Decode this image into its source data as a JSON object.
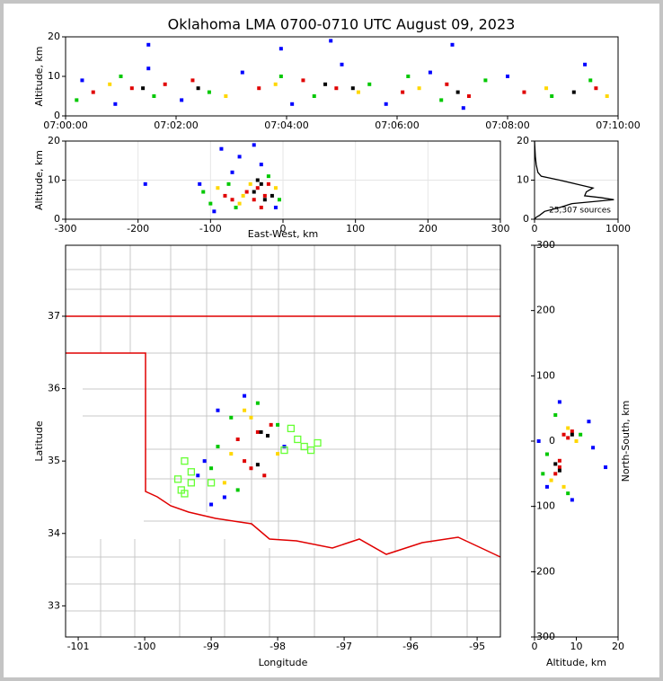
{
  "chart_data": [
    {
      "type": "scatter",
      "title": "Oklahoma LMA 0700-0710 UTC August 09, 2023",
      "y_label": "Altitude, km",
      "xlim": [
        0,
        10
      ],
      "xticks": [
        {
          "value": 0,
          "label": "07:00:00"
        },
        {
          "value": 2,
          "label": "07:02:00"
        },
        {
          "value": 4,
          "label": "07:04:00"
        },
        {
          "value": 6,
          "label": "07:06:00"
        },
        {
          "value": 8,
          "label": "07:08:00"
        },
        {
          "value": 10,
          "label": "07:10:00"
        }
      ],
      "ylim": [
        0,
        20
      ],
      "yticks": [
        0,
        10,
        20
      ],
      "grid": false,
      "series": [
        {
          "color": "#0000ff",
          "x": [
            0.3,
            0.9,
            1.5,
            2.1,
            3.2,
            4.1,
            5.0,
            5.8,
            6.6,
            7.2,
            8.0,
            9.4,
            1.5,
            3.9,
            4.8,
            7.0
          ],
          "values": [
            9,
            3,
            12,
            4,
            11,
            3,
            13,
            3,
            11,
            2,
            10,
            13,
            18,
            17,
            19,
            18
          ]
        },
        {
          "color": "#00c800",
          "x": [
            0.2,
            1.0,
            1.6,
            2.6,
            3.9,
            4.5,
            5.5,
            6.2,
            6.8,
            7.6,
            8.8,
            9.5
          ],
          "values": [
            4,
            10,
            5,
            6,
            10,
            5,
            8,
            10,
            4,
            9,
            5,
            9
          ]
        },
        {
          "color": "#ffd700",
          "x": [
            0.8,
            2.9,
            3.8,
            5.3,
            6.4,
            8.7,
            9.8
          ],
          "values": [
            8,
            5,
            8,
            6,
            7,
            7,
            5
          ]
        },
        {
          "color": "#e00000",
          "x": [
            0.5,
            1.2,
            1.8,
            2.3,
            3.5,
            4.3,
            4.9,
            6.1,
            6.9,
            7.3,
            8.3,
            9.6
          ],
          "values": [
            6,
            7,
            8,
            9,
            7,
            9,
            7,
            6,
            8,
            5,
            6,
            7
          ]
        },
        {
          "color": "#000000",
          "x": [
            1.4,
            4.7,
            7.1,
            9.2,
            2.4,
            5.2
          ],
          "values": [
            7,
            8,
            6,
            6,
            7,
            7
          ]
        }
      ]
    },
    {
      "type": "scatter",
      "x_label": "East-West, km",
      "y_label": "Altitude, km",
      "xlim": [
        -300,
        300
      ],
      "xticks": [
        -300,
        -200,
        -100,
        0,
        100,
        200,
        300
      ],
      "ylim": [
        0,
        20
      ],
      "yticks": [
        0,
        10,
        20
      ],
      "grid": true,
      "series": [
        {
          "color": "#0000ff",
          "x": [
            -115,
            -95,
            -70,
            -30,
            -60,
            -10,
            -190,
            -40,
            -85
          ],
          "values": [
            9,
            2,
            12,
            14,
            16,
            3,
            9,
            19,
            18
          ]
        },
        {
          "color": "#00c800",
          "x": [
            -110,
            -100,
            -75,
            -65,
            -5,
            -20
          ],
          "values": [
            7,
            4,
            9,
            3,
            5,
            11
          ]
        },
        {
          "color": "#ffd700",
          "x": [
            -90,
            -60,
            -45,
            -10,
            -55
          ],
          "values": [
            8,
            4,
            9,
            8,
            6
          ]
        },
        {
          "color": "#e00000",
          "x": [
            -80,
            -70,
            -50,
            -40,
            -35,
            -25,
            -20,
            -30
          ],
          "values": [
            6,
            5,
            7,
            5,
            8,
            6,
            9,
            3
          ]
        },
        {
          "color": "#000000",
          "x": [
            -40,
            -30,
            -25,
            -15,
            -35
          ],
          "values": [
            7,
            9,
            5,
            6,
            10
          ]
        }
      ]
    },
    {
      "type": "line",
      "annotation": "25,307 sources",
      "xlim": [
        0,
        1000
      ],
      "xticks": [
        0,
        1000
      ],
      "ylim": [
        0,
        20
      ],
      "yticks": [
        0,
        10,
        20
      ],
      "grid": true,
      "color": "#000000",
      "x": [
        0,
        20,
        60,
        120,
        300,
        450,
        950,
        800,
        600,
        620,
        700,
        500,
        300,
        80,
        40,
        20,
        10,
        5,
        0
      ],
      "values": [
        0,
        0.5,
        1,
        2,
        3,
        4,
        5,
        5.5,
        6,
        7,
        8,
        9,
        10,
        11,
        12,
        14,
        16,
        18,
        20
      ]
    },
    {
      "type": "scatter",
      "x_label": "Longitude",
      "y_label": "Latitude",
      "xlim": [
        -101.19,
        -94.65
      ],
      "xticks": [
        -101,
        -100,
        -99,
        -98,
        -97,
        -96,
        -95
      ],
      "ylim": [
        32.57,
        37.98
      ],
      "yticks": [
        33,
        34,
        35,
        36,
        37
      ],
      "grid": false,
      "series": [
        {
          "color": "#0000ff",
          "x": [
            -99.1,
            -98.9,
            -98.5,
            -99.0,
            -97.9,
            -98.8,
            -99.2
          ],
          "values": [
            35.0,
            35.7,
            35.9,
            34.4,
            35.2,
            34.5,
            34.8
          ]
        },
        {
          "color": "#00c800",
          "x": [
            -98.9,
            -98.7,
            -98.0,
            -99.0,
            -98.6,
            -98.3
          ],
          "values": [
            35.2,
            35.6,
            35.5,
            34.9,
            34.6,
            35.8
          ]
        },
        {
          "color": "#ffd700",
          "x": [
            -98.4,
            -98.7,
            -98.0,
            -98.8,
            -98.5
          ],
          "values": [
            35.6,
            35.1,
            35.1,
            34.7,
            35.7
          ]
        },
        {
          "color": "#e00000",
          "x": [
            -98.3,
            -98.1,
            -98.4,
            -98.2,
            -98.5,
            -98.6
          ],
          "values": [
            35.4,
            35.5,
            34.9,
            34.8,
            35.0,
            35.3
          ]
        },
        {
          "color": "#000000",
          "x": [
            -98.25,
            -98.3,
            -98.15
          ],
          "values": [
            35.4,
            34.95,
            35.35
          ]
        },
        {
          "color": "#66ff33",
          "marker": "open-square",
          "x": [
            -97.8,
            -97.7,
            -97.6,
            -97.4,
            -97.5,
            -97.9,
            -99.4,
            -99.3,
            -99.5,
            -99.3,
            -99.4,
            -99.0,
            -99.45
          ],
          "values": [
            35.45,
            35.3,
            35.2,
            35.25,
            35.15,
            35.15,
            35.0,
            34.85,
            34.75,
            34.7,
            34.55,
            34.7,
            34.6
          ]
        }
      ]
    },
    {
      "type": "scatter",
      "x_label": "Altitude, km",
      "y_label": "North-South, km",
      "xlim": [
        0,
        20
      ],
      "xticks": [
        0,
        10,
        20
      ],
      "ylim": [
        -300,
        300
      ],
      "yticks": [
        -300,
        -200,
        -100,
        0,
        100,
        200,
        300
      ],
      "grid": false,
      "series": [
        {
          "color": "#0000ff",
          "x": [
            1,
            14,
            6,
            9,
            13,
            17,
            3
          ],
          "values": [
            0,
            -10,
            60,
            -90,
            30,
            -40,
            -70
          ]
        },
        {
          "color": "#00c800",
          "x": [
            3,
            11,
            5,
            8,
            2
          ],
          "values": [
            -20,
            10,
            40,
            -80,
            -50
          ]
        },
        {
          "color": "#ffd700",
          "x": [
            4,
            8,
            10,
            7
          ],
          "values": [
            -60,
            20,
            0,
            -70
          ]
        },
        {
          "color": "#e00000",
          "x": [
            6,
            5,
            7,
            8,
            6,
            9
          ],
          "values": [
            -40,
            -50,
            10,
            5,
            -30,
            15
          ]
        },
        {
          "color": "#000000",
          "x": [
            6,
            9,
            5
          ],
          "values": [
            -45,
            10,
            -35
          ]
        }
      ]
    }
  ]
}
